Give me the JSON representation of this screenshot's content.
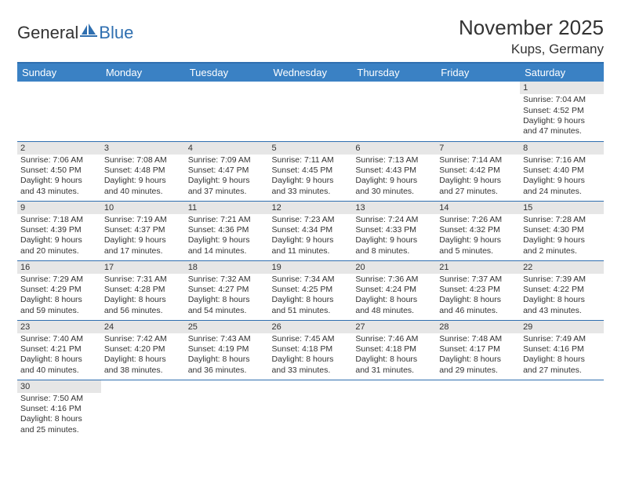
{
  "logo": {
    "part1": "General",
    "part2": "Blue"
  },
  "title": "November 2025",
  "location": "Kups, Germany",
  "colors": {
    "header_bg": "#3a81c4",
    "header_border": "#2f6fb0",
    "row_divider": "#2f6fb0",
    "daynum_bg": "#e6e6e6",
    "page_bg": "#ffffff",
    "text": "#333333",
    "logo_blue": "#2f6fb0"
  },
  "typography": {
    "title_fontsize": 26,
    "location_fontsize": 17,
    "header_fontsize": 13,
    "cell_fontsize": 10.5,
    "logo_fontsize": 22
  },
  "day_headers": [
    "Sunday",
    "Monday",
    "Tuesday",
    "Wednesday",
    "Thursday",
    "Friday",
    "Saturday"
  ],
  "weeks": [
    [
      null,
      null,
      null,
      null,
      null,
      null,
      {
        "n": "1",
        "sunrise": "Sunrise: 7:04 AM",
        "sunset": "Sunset: 4:52 PM",
        "daylight": "Daylight: 9 hours and 47 minutes."
      }
    ],
    [
      {
        "n": "2",
        "sunrise": "Sunrise: 7:06 AM",
        "sunset": "Sunset: 4:50 PM",
        "daylight": "Daylight: 9 hours and 43 minutes."
      },
      {
        "n": "3",
        "sunrise": "Sunrise: 7:08 AM",
        "sunset": "Sunset: 4:48 PM",
        "daylight": "Daylight: 9 hours and 40 minutes."
      },
      {
        "n": "4",
        "sunrise": "Sunrise: 7:09 AM",
        "sunset": "Sunset: 4:47 PM",
        "daylight": "Daylight: 9 hours and 37 minutes."
      },
      {
        "n": "5",
        "sunrise": "Sunrise: 7:11 AM",
        "sunset": "Sunset: 4:45 PM",
        "daylight": "Daylight: 9 hours and 33 minutes."
      },
      {
        "n": "6",
        "sunrise": "Sunrise: 7:13 AM",
        "sunset": "Sunset: 4:43 PM",
        "daylight": "Daylight: 9 hours and 30 minutes."
      },
      {
        "n": "7",
        "sunrise": "Sunrise: 7:14 AM",
        "sunset": "Sunset: 4:42 PM",
        "daylight": "Daylight: 9 hours and 27 minutes."
      },
      {
        "n": "8",
        "sunrise": "Sunrise: 7:16 AM",
        "sunset": "Sunset: 4:40 PM",
        "daylight": "Daylight: 9 hours and 24 minutes."
      }
    ],
    [
      {
        "n": "9",
        "sunrise": "Sunrise: 7:18 AM",
        "sunset": "Sunset: 4:39 PM",
        "daylight": "Daylight: 9 hours and 20 minutes."
      },
      {
        "n": "10",
        "sunrise": "Sunrise: 7:19 AM",
        "sunset": "Sunset: 4:37 PM",
        "daylight": "Daylight: 9 hours and 17 minutes."
      },
      {
        "n": "11",
        "sunrise": "Sunrise: 7:21 AM",
        "sunset": "Sunset: 4:36 PM",
        "daylight": "Daylight: 9 hours and 14 minutes."
      },
      {
        "n": "12",
        "sunrise": "Sunrise: 7:23 AM",
        "sunset": "Sunset: 4:34 PM",
        "daylight": "Daylight: 9 hours and 11 minutes."
      },
      {
        "n": "13",
        "sunrise": "Sunrise: 7:24 AM",
        "sunset": "Sunset: 4:33 PM",
        "daylight": "Daylight: 9 hours and 8 minutes."
      },
      {
        "n": "14",
        "sunrise": "Sunrise: 7:26 AM",
        "sunset": "Sunset: 4:32 PM",
        "daylight": "Daylight: 9 hours and 5 minutes."
      },
      {
        "n": "15",
        "sunrise": "Sunrise: 7:28 AM",
        "sunset": "Sunset: 4:30 PM",
        "daylight": "Daylight: 9 hours and 2 minutes."
      }
    ],
    [
      {
        "n": "16",
        "sunrise": "Sunrise: 7:29 AM",
        "sunset": "Sunset: 4:29 PM",
        "daylight": "Daylight: 8 hours and 59 minutes."
      },
      {
        "n": "17",
        "sunrise": "Sunrise: 7:31 AM",
        "sunset": "Sunset: 4:28 PM",
        "daylight": "Daylight: 8 hours and 56 minutes."
      },
      {
        "n": "18",
        "sunrise": "Sunrise: 7:32 AM",
        "sunset": "Sunset: 4:27 PM",
        "daylight": "Daylight: 8 hours and 54 minutes."
      },
      {
        "n": "19",
        "sunrise": "Sunrise: 7:34 AM",
        "sunset": "Sunset: 4:25 PM",
        "daylight": "Daylight: 8 hours and 51 minutes."
      },
      {
        "n": "20",
        "sunrise": "Sunrise: 7:36 AM",
        "sunset": "Sunset: 4:24 PM",
        "daylight": "Daylight: 8 hours and 48 minutes."
      },
      {
        "n": "21",
        "sunrise": "Sunrise: 7:37 AM",
        "sunset": "Sunset: 4:23 PM",
        "daylight": "Daylight: 8 hours and 46 minutes."
      },
      {
        "n": "22",
        "sunrise": "Sunrise: 7:39 AM",
        "sunset": "Sunset: 4:22 PM",
        "daylight": "Daylight: 8 hours and 43 minutes."
      }
    ],
    [
      {
        "n": "23",
        "sunrise": "Sunrise: 7:40 AM",
        "sunset": "Sunset: 4:21 PM",
        "daylight": "Daylight: 8 hours and 40 minutes."
      },
      {
        "n": "24",
        "sunrise": "Sunrise: 7:42 AM",
        "sunset": "Sunset: 4:20 PM",
        "daylight": "Daylight: 8 hours and 38 minutes."
      },
      {
        "n": "25",
        "sunrise": "Sunrise: 7:43 AM",
        "sunset": "Sunset: 4:19 PM",
        "daylight": "Daylight: 8 hours and 36 minutes."
      },
      {
        "n": "26",
        "sunrise": "Sunrise: 7:45 AM",
        "sunset": "Sunset: 4:18 PM",
        "daylight": "Daylight: 8 hours and 33 minutes."
      },
      {
        "n": "27",
        "sunrise": "Sunrise: 7:46 AM",
        "sunset": "Sunset: 4:18 PM",
        "daylight": "Daylight: 8 hours and 31 minutes."
      },
      {
        "n": "28",
        "sunrise": "Sunrise: 7:48 AM",
        "sunset": "Sunset: 4:17 PM",
        "daylight": "Daylight: 8 hours and 29 minutes."
      },
      {
        "n": "29",
        "sunrise": "Sunrise: 7:49 AM",
        "sunset": "Sunset: 4:16 PM",
        "daylight": "Daylight: 8 hours and 27 minutes."
      }
    ],
    [
      {
        "n": "30",
        "sunrise": "Sunrise: 7:50 AM",
        "sunset": "Sunset: 4:16 PM",
        "daylight": "Daylight: 8 hours and 25 minutes."
      },
      null,
      null,
      null,
      null,
      null,
      null
    ]
  ]
}
